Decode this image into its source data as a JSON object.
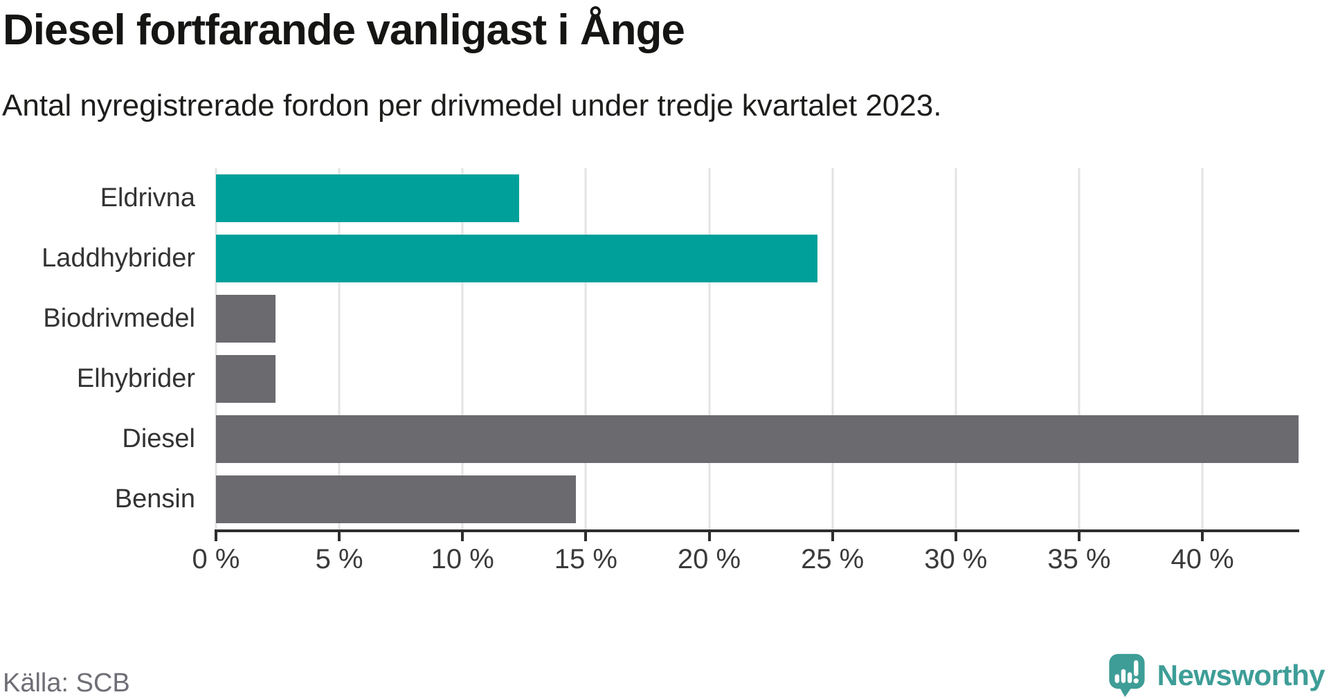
{
  "title": "Diesel fortfarande vanligast i Ånge",
  "subtitle": "Antal nyregistrerade fordon per drivmedel under tredje kvartalet 2023.",
  "source": "Källa: SCB",
  "brand": {
    "name": "Newsworthy",
    "icon": "newsworthy-speech-bubble-bar-chart-icon",
    "color": "#3E9D97"
  },
  "colors": {
    "teal_bar": "#00A09A",
    "gray_bar": "#6A6A6F",
    "grid": "#E3E3E3",
    "axis": "#2E2E2E",
    "title_text": "#151513",
    "tick_text": "#3A3A3A",
    "source_text": "#6E6E76"
  },
  "chart_data": {
    "type": "bar",
    "orientation": "horizontal",
    "title": "Diesel fortfarande vanligast i Ånge",
    "subtitle": "Antal nyregistrerade fordon per drivmedel under tredje kvartalet 2023.",
    "categories": [
      "Eldrivna",
      "Laddhybrider",
      "Biodrivmedel",
      "Elhybrider",
      "Diesel",
      "Bensin"
    ],
    "values": [
      12.3,
      24.4,
      2.4,
      2.4,
      43.9,
      14.6
    ],
    "bar_colors": [
      "#00A09A",
      "#00A09A",
      "#6A6A6F",
      "#6A6A6F",
      "#6A6A6F",
      "#6A6A6F"
    ],
    "unit": "%",
    "xlabel": "",
    "ylabel": "",
    "xlim": [
      0,
      43.9
    ],
    "x_ticks": [
      0,
      5,
      10,
      15,
      20,
      25,
      30,
      35,
      40
    ],
    "x_tick_labels": [
      "0 %",
      "5 %",
      "10 %",
      "15 %",
      "20 %",
      "25 %",
      "30 %",
      "35 %",
      "40 %"
    ],
    "grid": "vertical",
    "legend": "none"
  }
}
